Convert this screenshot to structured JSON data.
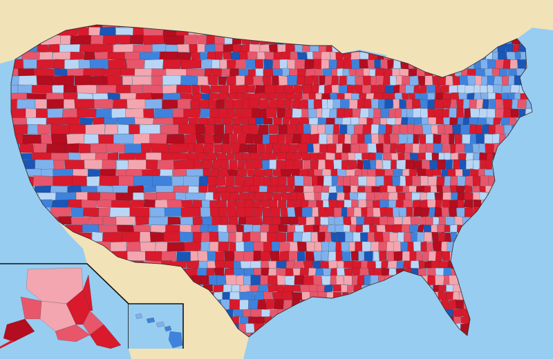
{
  "map": {
    "colors": {
      "water": "#97cdf0",
      "land_outside": "#f2e2b8",
      "county_border": "#2a2a2a",
      "inset_border": "#111111"
    },
    "legend_scale": {
      "republican": [
        "#f3a6b0",
        "#e8566b",
        "#d81a2c",
        "#b30d1f"
      ],
      "democratic": [
        "#b9d6f7",
        "#7fb1ee",
        "#3f82de",
        "#1a55b8"
      ]
    },
    "insets": [
      "alaska-inset",
      "hawaii-inset"
    ]
  }
}
